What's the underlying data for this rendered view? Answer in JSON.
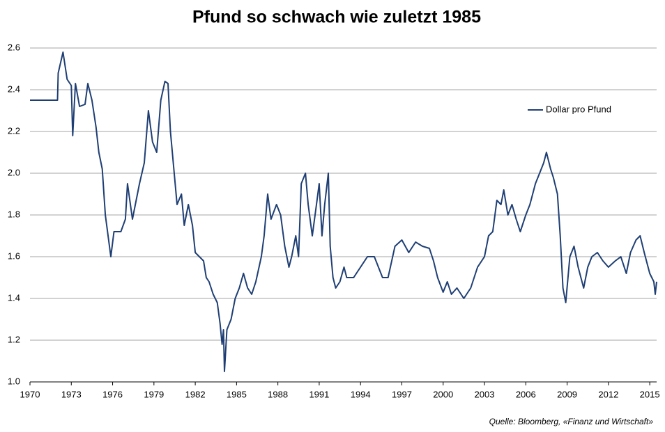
{
  "chart_data": {
    "type": "line",
    "title": "Pfund so schwach wie zuletzt 1985",
    "source": "Quelle: Bloomberg, «Finanz und Wirtschaft»",
    "legend": "upper right",
    "grid": true,
    "xlim": [
      1970,
      2015.5
    ],
    "xticks": [
      1970,
      1973,
      1976,
      1979,
      1982,
      1985,
      1988,
      1991,
      1994,
      1997,
      2000,
      2003,
      2006,
      2009,
      2012,
      2015
    ],
    "ylim": [
      1.0,
      2.6
    ],
    "yticks": [
      {
        "value": 1.0,
        "label": "1.0"
      },
      1.2,
      1.4,
      1.6,
      1.8,
      {
        "value": 2.0,
        "label": "2.0"
      },
      2.2,
      2.4,
      2.6
    ],
    "x": [
      1970,
      1972.0,
      1972.05,
      1972.4,
      1972.7,
      1973.0,
      1973.1,
      1973.3,
      1973.6,
      1974.0,
      1974.2,
      1974.5,
      1974.8,
      1975.0,
      1975.25,
      1975.47,
      1975.87,
      1976.1,
      1976.6,
      1976.93,
      1977.08,
      1977.44,
      1977.95,
      1978.3,
      1978.6,
      1978.9,
      1979.2,
      1979.5,
      1979.8,
      1980.02,
      1980.2,
      1980.68,
      1981.0,
      1981.2,
      1981.5,
      1981.8,
      1982.0,
      1982.3,
      1982.6,
      1982.8,
      1983.0,
      1983.3,
      1983.6,
      1983.8,
      1983.95,
      1984.05,
      1984.12,
      1984.3,
      1984.6,
      1984.9,
      1985.2,
      1985.5,
      1985.8,
      1986.1,
      1986.4,
      1986.8,
      1987.0,
      1987.26,
      1987.5,
      1987.9,
      1988.2,
      1988.5,
      1988.8,
      1989.0,
      1989.3,
      1989.5,
      1989.7,
      1990.0,
      1990.2,
      1990.5,
      1990.8,
      1991.0,
      1991.2,
      1991.4,
      1991.66,
      1991.8,
      1992.0,
      1992.2,
      1992.5,
      1992.8,
      1993.0,
      1993.5,
      1994.0,
      1994.5,
      1995.0,
      1995.3,
      1995.6,
      1996.0,
      1996.5,
      1997.0,
      1997.5,
      1998.0,
      1998.5,
      1999.0,
      1999.3,
      1999.6,
      2000.0,
      2000.3,
      2000.6,
      2001.0,
      2001.5,
      2002.0,
      2002.5,
      2003.0,
      2003.3,
      2003.6,
      2003.9,
      2004.2,
      2004.4,
      2004.7,
      2005.0,
      2005.3,
      2005.6,
      2006.0,
      2006.3,
      2006.7,
      2007.0,
      2007.3,
      2007.5,
      2007.8,
      2008.0,
      2008.3,
      2008.5,
      2008.7,
      2008.9,
      2009.2,
      2009.5,
      2009.8,
      2010.2,
      2010.5,
      2010.8,
      2011.2,
      2011.6,
      2012.0,
      2012.5,
      2012.9,
      2013.3,
      2013.6,
      2014.0,
      2014.3,
      2014.6,
      2015.0,
      2015.3,
      2015.4,
      2015.5
    ],
    "series": [
      {
        "name": "Dollar pro Pfund",
        "color": "#1f3f74",
        "values": [
          2.35,
          2.35,
          2.48,
          2.58,
          2.45,
          2.42,
          2.18,
          2.43,
          2.32,
          2.33,
          2.43,
          2.35,
          2.22,
          2.1,
          2.02,
          1.8,
          1.6,
          1.72,
          1.72,
          1.78,
          1.95,
          1.78,
          1.95,
          2.05,
          2.3,
          2.15,
          2.1,
          2.35,
          2.44,
          2.43,
          2.2,
          1.85,
          1.9,
          1.75,
          1.85,
          1.75,
          1.62,
          1.6,
          1.58,
          1.5,
          1.48,
          1.42,
          1.38,
          1.28,
          1.18,
          1.25,
          1.05,
          1.25,
          1.3,
          1.4,
          1.45,
          1.52,
          1.45,
          1.42,
          1.48,
          1.6,
          1.7,
          1.9,
          1.78,
          1.85,
          1.8,
          1.65,
          1.55,
          1.6,
          1.7,
          1.6,
          1.95,
          2.0,
          1.85,
          1.7,
          1.85,
          1.95,
          1.7,
          1.85,
          2.0,
          1.65,
          1.5,
          1.45,
          1.48,
          1.55,
          1.5,
          1.5,
          1.55,
          1.6,
          1.6,
          1.55,
          1.5,
          1.5,
          1.65,
          1.68,
          1.62,
          1.67,
          1.65,
          1.64,
          1.58,
          1.5,
          1.43,
          1.48,
          1.42,
          1.45,
          1.4,
          1.45,
          1.55,
          1.6,
          1.7,
          1.72,
          1.87,
          1.85,
          1.92,
          1.8,
          1.85,
          1.78,
          1.72,
          1.8,
          1.85,
          1.95,
          2.0,
          2.05,
          2.1,
          2.02,
          1.98,
          1.9,
          1.7,
          1.45,
          1.38,
          1.6,
          1.65,
          1.55,
          1.45,
          1.55,
          1.6,
          1.62,
          1.58,
          1.55,
          1.58,
          1.6,
          1.52,
          1.62,
          1.68,
          1.7,
          1.62,
          1.52,
          1.48,
          1.42,
          1.48
        ]
      }
    ]
  }
}
